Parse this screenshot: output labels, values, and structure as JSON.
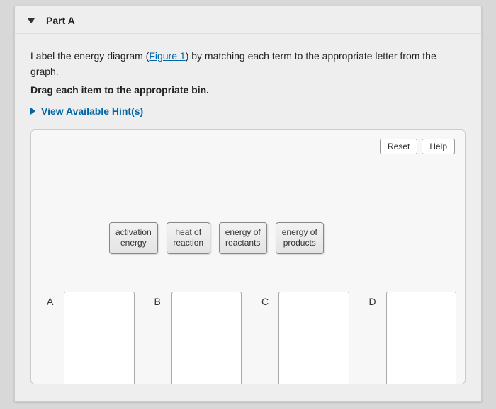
{
  "section": {
    "title": "Part A"
  },
  "instruction": {
    "prefix": "Label the energy diagram (",
    "link": "Figure 1",
    "suffix": ") by matching each term to the appropriate letter from the graph."
  },
  "drag_instruction": "Drag each item to the appropriate bin.",
  "hints": {
    "label": "View Available Hint(s)"
  },
  "toolbar": {
    "reset": "Reset",
    "help": "Help"
  },
  "draggables": [
    {
      "line1": "activation",
      "line2": "energy"
    },
    {
      "line1": "heat of",
      "line2": "reaction"
    },
    {
      "line1": "energy of",
      "line2": "reactants"
    },
    {
      "line1": "energy of",
      "line2": "products"
    }
  ],
  "bins": [
    {
      "label": "A"
    },
    {
      "label": "B"
    },
    {
      "label": "C"
    },
    {
      "label": "D"
    }
  ]
}
